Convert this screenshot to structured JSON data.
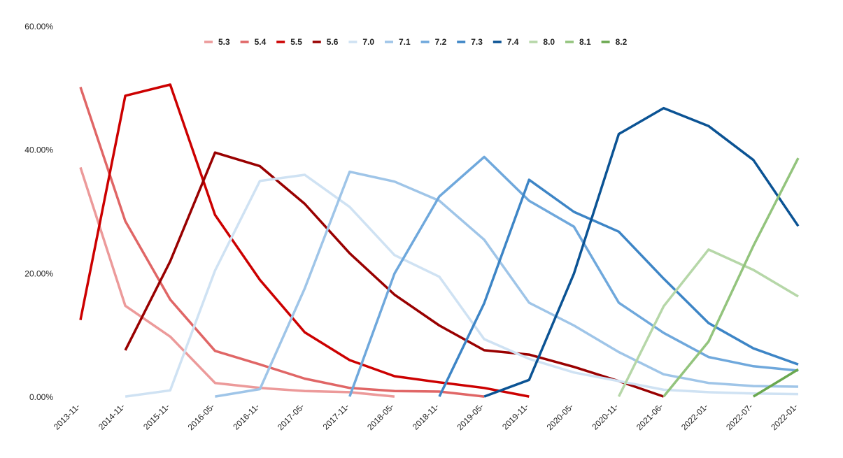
{
  "chart_data": {
    "type": "line",
    "title": "",
    "xlabel": "",
    "ylabel": "",
    "ylim": [
      0,
      60
    ],
    "y_ticks": [
      "0.00%",
      "20.00%",
      "40.00%",
      "60.00%"
    ],
    "grid": false,
    "legend_placement": "top-center",
    "categories": [
      "2013-11-",
      "2014-11-",
      "2015-11-",
      "2016-05-",
      "2016-11-",
      "2017-05-",
      "2017-11-",
      "2018-05-",
      "2018-11-",
      "2019-05-",
      "2019-11-",
      "2020-05-",
      "2020-11-",
      "2021-06-",
      "2022-01-",
      "2022-07-",
      "2022-01-"
    ],
    "series": [
      {
        "name": "5.3",
        "color": "#ec9a9a",
        "values": [
          37.2,
          14.8,
          9.8,
          2.3,
          1.5,
          1.0,
          0.8,
          0.1,
          null,
          null,
          null,
          null,
          null,
          null,
          null,
          null,
          null
        ]
      },
      {
        "name": "5.4",
        "color": "#e06666",
        "values": [
          50.2,
          28.5,
          15.8,
          7.5,
          5.3,
          3.0,
          1.5,
          1.0,
          0.9,
          0.1,
          null,
          null,
          null,
          null,
          null,
          null,
          null
        ]
      },
      {
        "name": "5.5",
        "color": "#cc0000",
        "values": [
          12.5,
          48.8,
          50.6,
          29.5,
          19.0,
          10.5,
          6.0,
          3.4,
          2.4,
          1.5,
          0.1,
          null,
          null,
          null,
          null,
          null,
          null
        ]
      },
      {
        "name": "5.6",
        "color": "#990000",
        "values": [
          null,
          7.6,
          22.0,
          39.6,
          37.4,
          31.3,
          23.3,
          16.6,
          11.6,
          7.6,
          6.9,
          4.9,
          2.6,
          0.1,
          null,
          null,
          null
        ]
      },
      {
        "name": "7.0",
        "color": "#cfe2f3",
        "values": [
          null,
          0.1,
          1.1,
          20.5,
          35.0,
          36.0,
          30.8,
          23.0,
          19.5,
          9.4,
          6.2,
          4.0,
          2.6,
          1.2,
          0.8,
          0.6,
          0.5
        ]
      },
      {
        "name": "7.1",
        "color": "#9fc5e8",
        "values": [
          null,
          null,
          null,
          0.1,
          1.3,
          17.6,
          36.5,
          34.9,
          31.8,
          25.5,
          15.3,
          11.6,
          7.3,
          3.7,
          2.3,
          1.8,
          1.7
        ]
      },
      {
        "name": "7.2",
        "color": "#6fa8dc",
        "values": [
          null,
          null,
          null,
          null,
          null,
          null,
          0.1,
          20.0,
          32.5,
          38.9,
          31.8,
          27.6,
          15.3,
          10.4,
          6.5,
          5.0,
          4.3
        ]
      },
      {
        "name": "7.3",
        "color": "#3d85c6",
        "values": [
          null,
          null,
          null,
          null,
          null,
          null,
          null,
          null,
          0.1,
          15.2,
          35.2,
          30.0,
          26.8,
          19.2,
          12.0,
          7.9,
          5.3
        ]
      },
      {
        "name": "7.4",
        "color": "#0b5394",
        "values": [
          null,
          null,
          null,
          null,
          null,
          null,
          null,
          null,
          null,
          0.1,
          2.8,
          20.0,
          42.6,
          46.8,
          43.9,
          38.4,
          27.7
        ]
      },
      {
        "name": "8.0",
        "color": "#b6d7a8",
        "values": [
          null,
          null,
          null,
          null,
          null,
          null,
          null,
          null,
          null,
          null,
          null,
          null,
          0.1,
          14.7,
          23.9,
          20.6,
          16.3
        ]
      },
      {
        "name": "8.1",
        "color": "#93c47d",
        "values": [
          null,
          null,
          null,
          null,
          null,
          null,
          null,
          null,
          null,
          null,
          null,
          null,
          null,
          0.1,
          9.0,
          24.5,
          38.7
        ]
      },
      {
        "name": "8.2",
        "color": "#6aa84f",
        "values": [
          null,
          null,
          null,
          null,
          null,
          null,
          null,
          null,
          null,
          null,
          null,
          null,
          null,
          null,
          null,
          0.1,
          4.5
        ]
      }
    ]
  }
}
